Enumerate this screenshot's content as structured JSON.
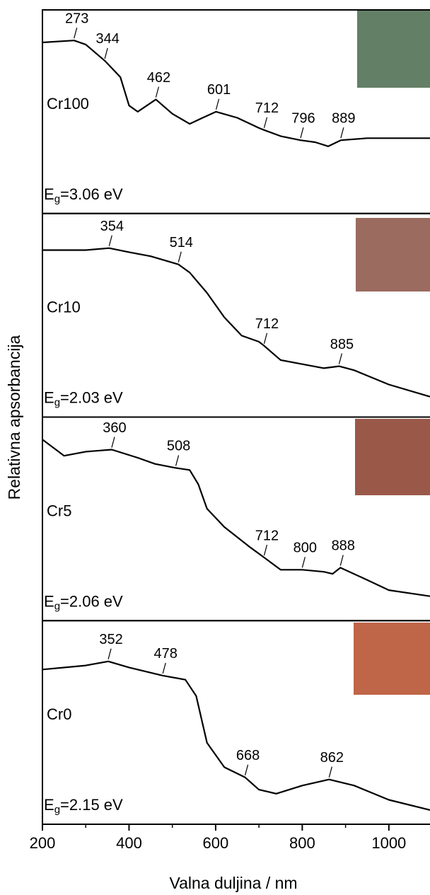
{
  "chart_data": {
    "type": "line",
    "xlabel": "Valna duljina / nm",
    "ylabel": "Relativna apsorbancija",
    "xlim": [
      200,
      1095
    ],
    "xticks": [
      200,
      400,
      600,
      800,
      1000
    ],
    "xminorticks": [
      300,
      500,
      700,
      900
    ],
    "color": "#000000",
    "panels": [
      {
        "label": "Cr100",
        "band_gap": {
          "symbol": "E",
          "subscript": "g",
          "text": "=3.06 eV"
        },
        "ylim": [
          0,
          1
        ],
        "x": [
          200,
          273,
          300,
          344,
          380,
          400,
          420,
          462,
          500,
          540,
          570,
          601,
          650,
          700,
          712,
          750,
          796,
          830,
          860,
          889,
          950,
          1000,
          1095
        ],
        "y": [
          0.84,
          0.85,
          0.83,
          0.75,
          0.67,
          0.53,
          0.5,
          0.56,
          0.49,
          0.44,
          0.47,
          0.5,
          0.47,
          0.42,
          0.41,
          0.38,
          0.36,
          0.35,
          0.33,
          0.36,
          0.37,
          0.37,
          0.37
        ],
        "peaks": [
          273,
          344,
          462,
          601,
          712,
          796,
          889
        ]
      },
      {
        "label": "Cr10",
        "band_gap": {
          "symbol": "E",
          "subscript": "g",
          "text": "=2.03 eV"
        },
        "ylim": [
          0,
          1
        ],
        "x": [
          200,
          300,
          354,
          400,
          450,
          514,
          540,
          580,
          620,
          660,
          700,
          712,
          750,
          800,
          850,
          885,
          920,
          1000,
          1095
        ],
        "y": [
          0.82,
          0.82,
          0.83,
          0.81,
          0.79,
          0.75,
          0.71,
          0.61,
          0.49,
          0.4,
          0.37,
          0.35,
          0.28,
          0.26,
          0.24,
          0.25,
          0.23,
          0.16,
          0.1
        ],
        "peaks": [
          354,
          514,
          712,
          885
        ]
      },
      {
        "label": "Cr5",
        "band_gap": {
          "symbol": "E",
          "subscript": "g",
          "text": "=2.06 eV"
        },
        "ylim": [
          0,
          1
        ],
        "x": [
          200,
          250,
          300,
          360,
          420,
          460,
          508,
          540,
          560,
          580,
          620,
          680,
          712,
          750,
          800,
          850,
          870,
          888,
          950,
          1000,
          1095
        ],
        "y": [
          0.89,
          0.81,
          0.83,
          0.84,
          0.8,
          0.77,
          0.75,
          0.74,
          0.67,
          0.55,
          0.46,
          0.36,
          0.31,
          0.25,
          0.25,
          0.24,
          0.23,
          0.26,
          0.2,
          0.15,
          0.12
        ],
        "peaks": [
          360,
          508,
          712,
          800,
          888
        ]
      },
      {
        "label": "Cr0",
        "band_gap": {
          "symbol": "E",
          "subscript": "g",
          "text": "=2.15 eV"
        },
        "ylim": [
          0,
          1
        ],
        "x": [
          200,
          300,
          352,
          400,
          478,
          530,
          555,
          580,
          620,
          668,
          700,
          740,
          800,
          862,
          920,
          1000,
          1095
        ],
        "y": [
          0.76,
          0.78,
          0.8,
          0.77,
          0.73,
          0.71,
          0.63,
          0.4,
          0.28,
          0.23,
          0.17,
          0.15,
          0.19,
          0.22,
          0.19,
          0.12,
          0.07
        ],
        "peaks": [
          352,
          478,
          668,
          862
        ]
      }
    ]
  }
}
